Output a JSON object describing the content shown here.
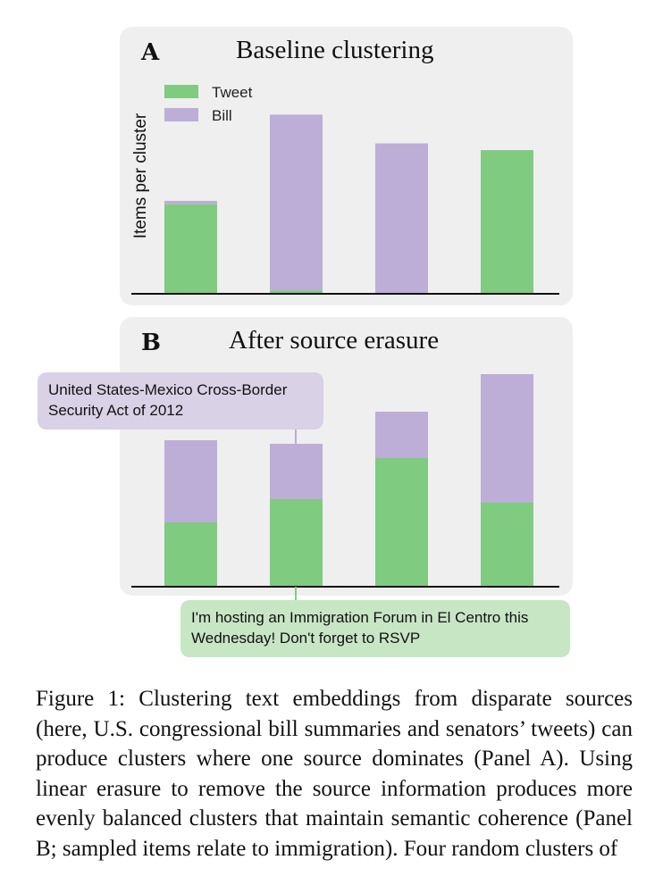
{
  "chart_data": [
    {
      "type": "bar",
      "stacked": true,
      "panel_label": "A",
      "title": "Baseline clustering",
      "ylabel": "Items per cluster",
      "xlabel": "",
      "categories": [
        "",
        "",
        "",
        ""
      ],
      "series": [
        {
          "name": "Tweet",
          "color": "#7fcb7f",
          "values": [
            53,
            2,
            0,
            85
          ]
        },
        {
          "name": "Bill",
          "color": "#bcaed6",
          "values": [
            2,
            104,
            89,
            0
          ]
        }
      ],
      "ylim": [
        0,
        112
      ],
      "grid": false,
      "legend": "top-left"
    },
    {
      "type": "bar",
      "stacked": true,
      "panel_label": "B",
      "title": "After source erasure",
      "ylabel": "",
      "xlabel": "",
      "categories": [
        "",
        "",
        "",
        ""
      ],
      "series": [
        {
          "name": "Tweet",
          "color": "#7fcb7f",
          "values": [
            36,
            49,
            72,
            47
          ]
        },
        {
          "name": "Bill",
          "color": "#bcaed6",
          "values": [
            46,
            31,
            26,
            72
          ]
        }
      ],
      "ylim": [
        0,
        126
      ],
      "grid": false,
      "legend": "none"
    }
  ],
  "callouts": {
    "bill_example": "United States-Mexico Cross-Border Security Act of 2012",
    "tweet_example": "I'm hosting an Immigration Forum in El Centro this Wednesday! Don't forget to RSVP"
  },
  "caption": "Figure 1: Clustering text embeddings from disparate sources (here, U.S. congressional bill summaries and senators’ tweets) can produce clusters where one source dominates (Panel A). Using linear erasure to remove the source information produces more evenly balanced clusters that maintain semantic coherence (Panel B; sampled items relate to immigration). Four random clusters of"
}
